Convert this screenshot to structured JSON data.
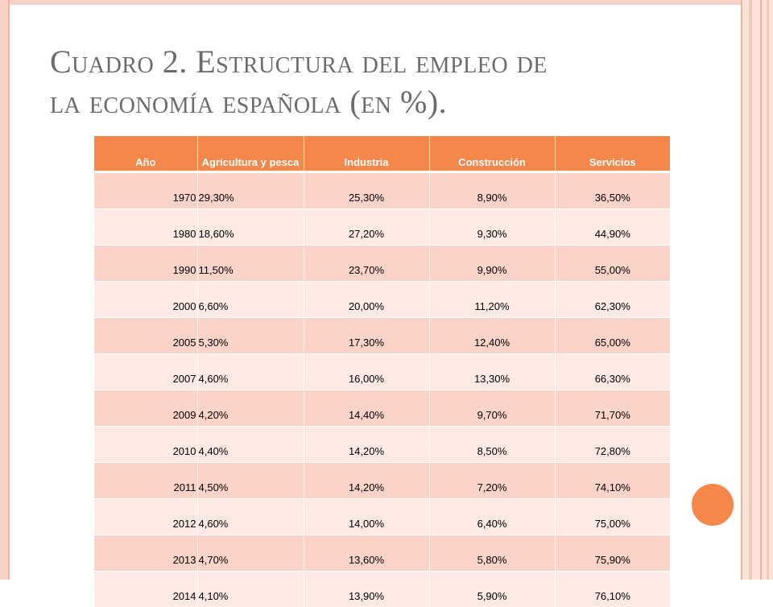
{
  "slide": {
    "title_line1": "Cuadro 2. Estructura del empleo de",
    "title_line2": "la economía española (en %)."
  },
  "table": {
    "headers": [
      "Año",
      "Agricultura y pesca",
      "Industria",
      "Construcción",
      "Servicios"
    ],
    "rows": [
      [
        "1970",
        "29,30%",
        "25,30%",
        "8,90%",
        "36,50%"
      ],
      [
        "1980",
        "18,60%",
        "27,20%",
        "9,30%",
        "44,90%"
      ],
      [
        "1990",
        "11,50%",
        "23,70%",
        "9,90%",
        "55,00%"
      ],
      [
        "2000",
        "6,60%",
        "20,00%",
        "11,20%",
        "62,30%"
      ],
      [
        "2005",
        "5,30%",
        "17,30%",
        "12,40%",
        "65,00%"
      ],
      [
        "2007",
        "4,60%",
        "16,00%",
        "13,30%",
        "66,30%"
      ],
      [
        "2009",
        "4,20%",
        "14,40%",
        "9,70%",
        "71,70%"
      ],
      [
        "2010",
        "4,40%",
        "14,20%",
        "8,50%",
        "72,80%"
      ],
      [
        "2011",
        "4,50%",
        "14,20%",
        "7,20%",
        "74,10%"
      ],
      [
        "2012",
        "4,60%",
        "14,00%",
        "6,40%",
        "75,00%"
      ],
      [
        "2013",
        "4,70%",
        "13,60%",
        "5,80%",
        "75,90%"
      ],
      [
        "2014",
        "4,10%",
        "13,90%",
        "5,90%",
        "76,10%"
      ]
    ]
  },
  "colors": {
    "header_bg": "#f6874b",
    "row_odd": "#fbd3c8",
    "row_even": "#fdeae5",
    "accent_circle": "#f6874b",
    "frame": "#f8d2c6",
    "title_text": "#6b6b6b"
  }
}
